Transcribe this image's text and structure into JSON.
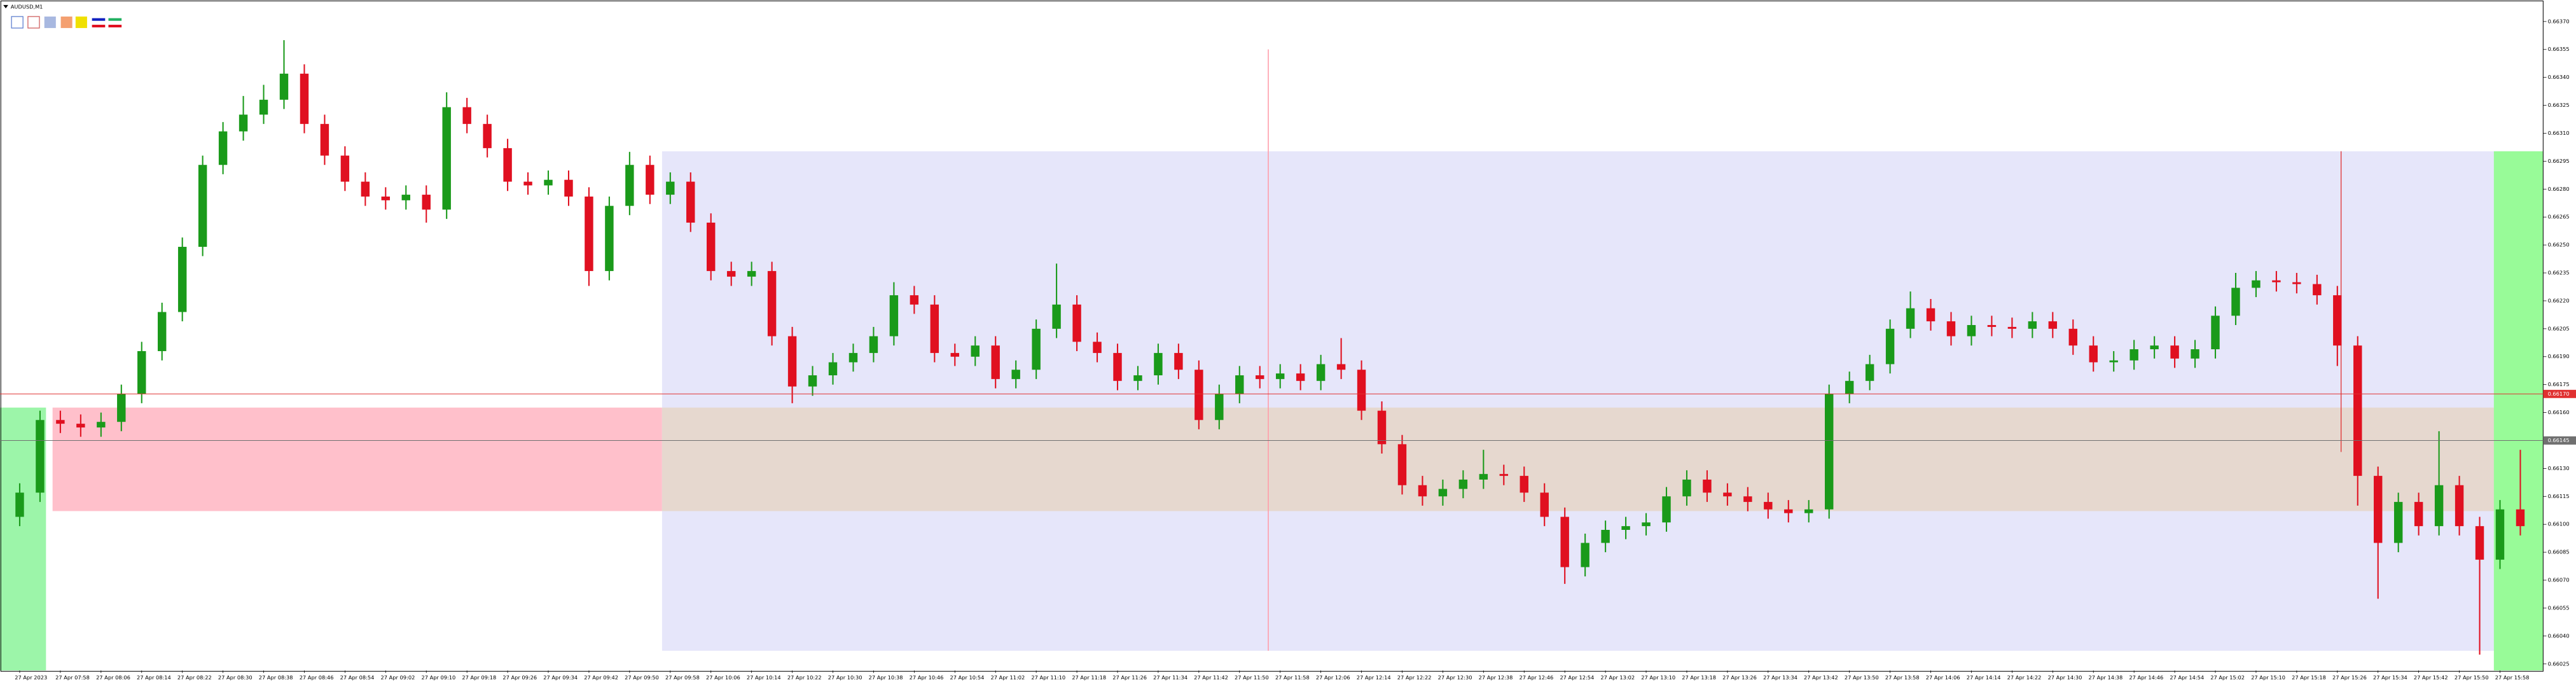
{
  "chart_data": {
    "type": "candlestick",
    "title": "AUDUSD,M1",
    "bull_color": "#1a9a1a",
    "bear_color": "#e01020",
    "ylim": [
      0.660215,
      0.663815
    ],
    "yticks": [
      0.66025,
      {
        "value": 0.6604,
        "label": "0.66040"
      },
      0.66055,
      {
        "value": 0.6607,
        "label": "0.66070"
      },
      0.66085,
      {
        "value": 0.661,
        "label": "0.66100"
      },
      0.66115,
      {
        "value": 0.6613,
        "label": "0.66130"
      },
      0.66145,
      {
        "value": 0.6616,
        "label": "0.66160"
      },
      0.66175,
      {
        "value": 0.6619,
        "label": "0.66190"
      },
      0.66205,
      {
        "value": 0.6622,
        "label": "0.66220"
      },
      0.66235,
      {
        "value": 0.6625,
        "label": "0.66250"
      },
      0.66265,
      {
        "value": 0.6628,
        "label": "0.66280"
      },
      0.66295,
      {
        "value": 0.6631,
        "label": "0.66310"
      },
      0.66325,
      {
        "value": 0.6634,
        "label": "0.66340"
      },
      0.66355,
      {
        "value": 0.6637,
        "label": "0.66370"
      }
    ],
    "price_lines": [
      {
        "value": 0.6617,
        "label": "0.66170",
        "color": "#e03030"
      },
      {
        "value": 0.66145,
        "label": "0.66145",
        "color": "#707070"
      }
    ],
    "categories": [
      "27 Apr 2023",
      null,
      "27 Apr 07:58",
      null,
      "27 Apr 08:06",
      null,
      "27 Apr 08:14",
      null,
      "27 Apr 08:22",
      null,
      "27 Apr 08:30",
      null,
      "27 Apr 08:38",
      null,
      "27 Apr 08:46",
      null,
      "27 Apr 08:54",
      null,
      "27 Apr 09:02",
      null,
      "27 Apr 09:10",
      null,
      "27 Apr 09:18",
      null,
      "27 Apr 09:26",
      null,
      "27 Apr 09:34",
      null,
      "27 Apr 09:42",
      null,
      "27 Apr 09:50",
      null,
      "27 Apr 09:58",
      null,
      "27 Apr 10:06",
      null,
      "27 Apr 10:14",
      null,
      "27 Apr 10:22",
      null,
      "27 Apr 10:30",
      null,
      "27 Apr 10:38",
      null,
      "27 Apr 10:46",
      null,
      "27 Apr 10:54",
      null,
      "27 Apr 11:02",
      null,
      "27 Apr 11:10",
      null,
      "27 Apr 11:18",
      null,
      "27 Apr 11:26",
      null,
      "27 Apr 11:34",
      null,
      "27 Apr 11:42",
      null,
      "27 Apr 11:50",
      null,
      "27 Apr 11:58",
      null,
      "27 Apr 12:06",
      null,
      "27 Apr 12:14",
      null,
      "27 Apr 12:22",
      null,
      "27 Apr 12:30",
      null,
      "27 Apr 12:38",
      null,
      "27 Apr 12:46",
      null,
      "27 Apr 12:54",
      null,
      "27 Apr 13:02",
      null,
      "27 Apr 13:10",
      null,
      "27 Apr 13:18",
      null,
      "27 Apr 13:26",
      null,
      "27 Apr 13:34",
      null,
      "27 Apr 13:42",
      null,
      "27 Apr 13:50",
      null,
      "27 Apr 13:58",
      null,
      "27 Apr 14:06",
      null,
      "27 Apr 14:14",
      null,
      "27 Apr 14:22",
      null,
      "27 Apr 14:30",
      null,
      "27 Apr 14:38",
      null,
      "27 Apr 14:46",
      null,
      "27 Apr 14:54",
      null,
      "27 Apr 15:02",
      null,
      "27 Apr 15:10",
      null,
      "27 Apr 15:18",
      null,
      "27 Apr 15:26",
      null,
      "27 Apr 15:34",
      null,
      "27 Apr 15:42",
      null,
      "27 Apr 15:50",
      null,
      "27 Apr 15:58",
      null
    ],
    "open": [
      0.66104,
      0.66117,
      0.66156,
      0.66154,
      0.66152,
      0.66155,
      0.6617,
      0.66193,
      0.66214,
      0.66249,
      0.66293,
      0.66311,
      0.6632,
      0.66328,
      0.66342,
      0.66315,
      0.66298,
      0.66284,
      0.66276,
      0.66274,
      0.66277,
      0.66269,
      0.66324,
      0.66315,
      0.66302,
      0.66284,
      0.66282,
      0.66285,
      0.66276,
      0.66236,
      0.66271,
      0.66293,
      0.66277,
      0.66284,
      0.66262,
      0.66236,
      0.66233,
      0.66236,
      0.66201,
      0.66174,
      0.6618,
      0.66187,
      0.66192,
      0.66201,
      0.66223,
      0.66218,
      0.66192,
      0.6619,
      0.66196,
      0.66178,
      0.66183,
      0.66205,
      0.66218,
      0.66198,
      0.66192,
      0.66177,
      0.6618,
      0.66192,
      0.66183,
      0.66156,
      0.6617,
      0.6618,
      0.66178,
      0.66181,
      0.66177,
      0.66186,
      0.66183,
      0.66161,
      0.66143,
      0.66121,
      0.66115,
      0.66119,
      0.66124,
      0.66127,
      0.66126,
      0.66117,
      0.66104,
      0.66077,
      0.6609,
      0.66097,
      0.66099,
      0.66101,
      0.66115,
      0.66124,
      0.66117,
      0.66115,
      0.66112,
      0.66108,
      0.66106,
      0.66108,
      0.6617,
      0.66177,
      0.66186,
      0.66205,
      0.66216,
      0.66209,
      0.66201,
      0.66207,
      0.66206,
      0.66205,
      0.66209,
      0.66205,
      0.66196,
      0.66187,
      0.66188,
      0.66194,
      0.66196,
      0.66189,
      0.66194,
      0.66212,
      0.66227,
      0.66231,
      0.6623,
      0.66229,
      0.66223,
      0.66196,
      0.66126,
      0.6609,
      0.66112,
      0.66099,
      0.66121,
      0.66099,
      0.66081,
      0.66108
    ],
    "high": [
      0.66122,
      0.66161,
      0.66161,
      0.66159,
      0.6616,
      0.66175,
      0.66198,
      0.66219,
      0.66254,
      0.66298,
      0.66316,
      0.6633,
      0.66336,
      0.6636,
      0.66347,
      0.6632,
      0.66303,
      0.66289,
      0.66281,
      0.66282,
      0.66282,
      0.66332,
      0.66329,
      0.6632,
      0.66307,
      0.66289,
      0.6629,
      0.6629,
      0.66281,
      0.66276,
      0.663,
      0.66298,
      0.66289,
      0.66289,
      0.66267,
      0.66241,
      0.66241,
      0.66241,
      0.66206,
      0.66185,
      0.66192,
      0.66197,
      0.66206,
      0.6623,
      0.66228,
      0.66223,
      0.66197,
      0.66201,
      0.66201,
      0.66188,
      0.6621,
      0.6624,
      0.66223,
      0.66203,
      0.66197,
      0.66185,
      0.66197,
      0.66197,
      0.66188,
      0.66175,
      0.66185,
      0.66185,
      0.66186,
      0.66186,
      0.66191,
      0.662,
      0.66188,
      0.66166,
      0.66148,
      0.66126,
      0.66124,
      0.66129,
      0.6614,
      0.66132,
      0.66131,
      0.66122,
      0.66109,
      0.66095,
      0.66102,
      0.66104,
      0.66106,
      0.6612,
      0.66129,
      0.66129,
      0.66122,
      0.6612,
      0.66117,
      0.66113,
      0.66113,
      0.66175,
      0.66182,
      0.66191,
      0.6621,
      0.66225,
      0.66221,
      0.66214,
      0.66212,
      0.66212,
      0.66211,
      0.66214,
      0.66214,
      0.6621,
      0.66201,
      0.66193,
      0.66199,
      0.66201,
      0.66201,
      0.66199,
      0.66217,
      0.66235,
      0.66236,
      0.66236,
      0.66235,
      0.66234,
      0.66228,
      0.66201,
      0.66131,
      0.66117,
      0.66117,
      0.6615,
      0.66126,
      0.66104,
      0.66113,
      0.6614
    ],
    "low": [
      0.66099,
      0.66112,
      0.66149,
      0.66147,
      0.66147,
      0.6615,
      0.66165,
      0.66188,
      0.66209,
      0.66244,
      0.66288,
      0.66306,
      0.66315,
      0.66323,
      0.6631,
      0.66293,
      0.66279,
      0.66271,
      0.66269,
      0.66269,
      0.66262,
      0.66264,
      0.6631,
      0.66297,
      0.66279,
      0.66277,
      0.66277,
      0.66271,
      0.66228,
      0.66231,
      0.66266,
      0.66272,
      0.66272,
      0.66257,
      0.66231,
      0.66228,
      0.66228,
      0.66196,
      0.66165,
      0.66169,
      0.66175,
      0.66182,
      0.66187,
      0.66196,
      0.66213,
      0.66187,
      0.66185,
      0.66185,
      0.66173,
      0.66173,
      0.66178,
      0.662,
      0.66193,
      0.66187,
      0.66172,
      0.66172,
      0.66175,
      0.66178,
      0.66151,
      0.66151,
      0.66165,
      0.66173,
      0.66173,
      0.66172,
      0.66172,
      0.66178,
      0.66156,
      0.66138,
      0.66116,
      0.6611,
      0.6611,
      0.66114,
      0.66119,
      0.66121,
      0.66112,
      0.66099,
      0.66068,
      0.66072,
      0.66085,
      0.66092,
      0.66094,
      0.66096,
      0.6611,
      0.66112,
      0.6611,
      0.66107,
      0.66103,
      0.66101,
      0.66101,
      0.66103,
      0.66165,
      0.66172,
      0.66181,
      0.662,
      0.66204,
      0.66196,
      0.66196,
      0.66201,
      0.662,
      0.662,
      0.662,
      0.66191,
      0.66182,
      0.66182,
      0.66183,
      0.66189,
      0.66184,
      0.66184,
      0.66189,
      0.66207,
      0.66222,
      0.66225,
      0.66224,
      0.66218,
      0.66185,
      0.6611,
      0.6606,
      0.66085,
      0.66094,
      0.66094,
      0.66094,
      0.6603,
      0.66076,
      0.66094
    ],
    "close": [
      0.66117,
      0.66156,
      0.66154,
      0.66152,
      0.66155,
      0.6617,
      0.66193,
      0.66214,
      0.66249,
      0.66293,
      0.66311,
      0.6632,
      0.66328,
      0.66342,
      0.66315,
      0.66298,
      0.66284,
      0.66276,
      0.66274,
      0.66277,
      0.66269,
      0.66324,
      0.66315,
      0.66302,
      0.66284,
      0.66282,
      0.66285,
      0.66276,
      0.66236,
      0.66271,
      0.66293,
      0.66277,
      0.66284,
      0.66262,
      0.66236,
      0.66233,
      0.66236,
      0.66201,
      0.66174,
      0.6618,
      0.66187,
      0.66192,
      0.66201,
      0.66223,
      0.66218,
      0.66192,
      0.6619,
      0.66196,
      0.66178,
      0.66183,
      0.66205,
      0.66218,
      0.66198,
      0.66192,
      0.66177,
      0.6618,
      0.66192,
      0.66183,
      0.66156,
      0.6617,
      0.6618,
      0.66178,
      0.66181,
      0.66177,
      0.66186,
      0.66183,
      0.66161,
      0.66143,
      0.66121,
      0.66115,
      0.66119,
      0.66124,
      0.66127,
      0.66126,
      0.66117,
      0.66104,
      0.66077,
      0.6609,
      0.66097,
      0.66099,
      0.66101,
      0.66115,
      0.66124,
      0.66117,
      0.66115,
      0.66112,
      0.66108,
      0.66106,
      0.66108,
      0.6617,
      0.66177,
      0.66186,
      0.66205,
      0.66216,
      0.66209,
      0.66201,
      0.66207,
      0.66206,
      0.66205,
      0.66209,
      0.66205,
      0.66196,
      0.66187,
      0.66188,
      0.66194,
      0.66196,
      0.66189,
      0.66194,
      0.66212,
      0.66227,
      0.66231,
      0.6623,
      0.66229,
      0.66223,
      0.66196,
      0.66126,
      0.6609,
      0.66112,
      0.66099,
      0.66121,
      0.66099,
      0.66081,
      0.66108,
      0.66099
    ]
  }
}
